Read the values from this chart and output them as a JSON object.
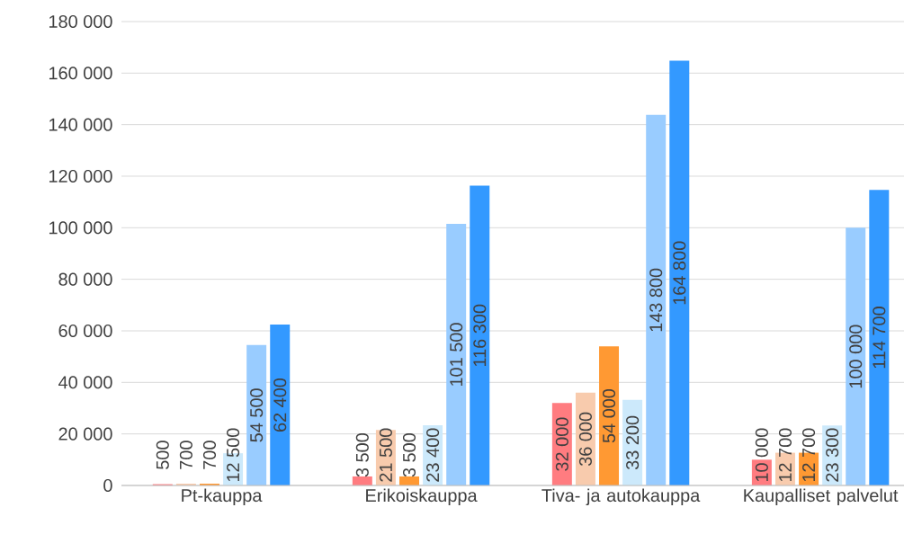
{
  "chart_data": {
    "type": "bar",
    "categories": [
      "Pt-kauppa",
      "Erikoiskauppa",
      "Tiva- ja autokauppa",
      "Kaupalliset palvelut"
    ],
    "series": [
      {
        "color": "#ff7c80",
        "values": [
          500,
          3500,
          32000,
          10000
        ],
        "value_labels": [
          "500",
          "3 500",
          "32 000",
          "10 000"
        ]
      },
      {
        "color": "#f8cbad",
        "values": [
          700,
          21500,
          36000,
          12700
        ],
        "value_labels": [
          "700",
          "21 500",
          "36 000",
          "12 700"
        ]
      },
      {
        "color": "#ff9933",
        "values": [
          700,
          3500,
          54000,
          12700
        ],
        "value_labels": [
          "700",
          "3 500",
          "54 000",
          "12 700"
        ]
      },
      {
        "color": "#cce9fb",
        "values": [
          12500,
          23400,
          33200,
          23300
        ],
        "value_labels": [
          "12 500",
          "23 400",
          "33 200",
          "23 300"
        ]
      },
      {
        "color": "#99ccff",
        "values": [
          54500,
          101500,
          143800,
          100000
        ],
        "value_labels": [
          "54 500",
          "101 500",
          "143 800",
          "100 000"
        ]
      },
      {
        "color": "#3399ff",
        "values": [
          62400,
          116300,
          164800,
          114700
        ],
        "value_labels": [
          "62 400",
          "116 300",
          "164 800",
          "114 700"
        ]
      }
    ],
    "ylim": [
      0,
      180000
    ],
    "yticks": [
      {
        "value": 0,
        "label": "0"
      },
      {
        "value": 20000,
        "label": "20 000"
      },
      {
        "value": 40000,
        "label": "40 000"
      },
      {
        "value": 60000,
        "label": "60 000"
      },
      {
        "value": 80000,
        "label": "80 000"
      },
      {
        "value": 100000,
        "label": "100 000"
      },
      {
        "value": 120000,
        "label": "120 000"
      },
      {
        "value": 140000,
        "label": "140 000"
      },
      {
        "value": 160000,
        "label": "160 000"
      },
      {
        "value": 180000,
        "label": "180 000"
      }
    ],
    "grid": "y"
  }
}
